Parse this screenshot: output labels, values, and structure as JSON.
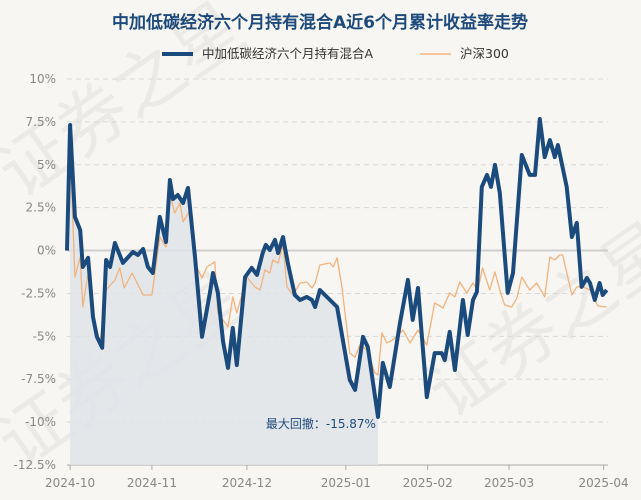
{
  "chart_data": {
    "type": "line",
    "title": "中加低碳经济六个月持有混合A近6个月累计收益率走势",
    "xlabel": "",
    "ylabel": "",
    "x_unit": "trading-day index",
    "xlim": [
      0,
      123
    ],
    "ylim": [
      -12.5,
      10
    ],
    "grid": true,
    "legend_position": "top-center",
    "y_ticks": [
      {
        "value": 10,
        "label": "10%"
      },
      {
        "value": 7.5,
        "label": "7.5%"
      },
      {
        "value": 5,
        "label": "5%"
      },
      {
        "value": 2.5,
        "label": "2.5%"
      },
      {
        "value": 0,
        "label": "0%"
      },
      {
        "value": -2.5,
        "label": "-2.5%"
      },
      {
        "value": -5,
        "label": "-5%"
      },
      {
        "value": -7.5,
        "label": "-7.5%"
      },
      {
        "value": -10,
        "label": "-10%"
      },
      {
        "value": -12.5,
        "label": "-12.5%"
      }
    ],
    "x_ticks": [
      {
        "value": 0.7,
        "label": "2024-10"
      },
      {
        "value": 19.3,
        "label": "2024-11"
      },
      {
        "value": 40.9,
        "label": "2024-12"
      },
      {
        "value": 63.4,
        "label": "2025-01"
      },
      {
        "value": 82,
        "label": "2025-02"
      },
      {
        "value": 100.5,
        "label": "2025-03"
      },
      {
        "value": 122,
        "label": "2025-04"
      }
    ],
    "series": [
      {
        "name": "中加低碳经济六个月持有混合A",
        "color": "#1b4b7d",
        "x": [
          0,
          0.7,
          1.8,
          3,
          3.6,
          4.8,
          5.9,
          6.8,
          8,
          8.9,
          9.8,
          10.9,
          12.7,
          15,
          16.1,
          17.3,
          18.4,
          19.5,
          21.1,
          22.5,
          23.4,
          24.1,
          25.2,
          26.4,
          27.5,
          29.1,
          30.7,
          32.5,
          33.2,
          34.3,
          35.5,
          36.6,
          37.7,
          38.6,
          40.5,
          42,
          43.2,
          44.5,
          45.2,
          46.1,
          47.3,
          48,
          49.1,
          50.2,
          51.8,
          53,
          54.5,
          55.7,
          56.4,
          57.5,
          61.4,
          64.3,
          65.5,
          67.3,
          68.4,
          70.7,
          71.8,
          73.4,
          75.7,
          77.5,
          78.6,
          79.8,
          81.8,
          83.6,
          85.2,
          85.9,
          87,
          88.2,
          90,
          91.1,
          92.3,
          93.2,
          94.3,
          95.5,
          96.4,
          97.3,
          98.4,
          100.2,
          101.4,
          103.4,
          105.2,
          106.4,
          107.5,
          108.6,
          109.8,
          110.9,
          111.6,
          113.6,
          114.8,
          115.9,
          117,
          118.2,
          118.9,
          120,
          121.1,
          121.8,
          122.7
        ],
        "values": [
          0,
          7.32,
          1.96,
          1.2,
          -0.96,
          -0.43,
          -3.87,
          -5.03,
          -5.67,
          -0.55,
          -0.96,
          0.44,
          -0.72,
          -0.08,
          -0.26,
          0.09,
          -0.96,
          -1.31,
          1.96,
          0.5,
          4.11,
          3.0,
          3.24,
          2.77,
          3.65,
          -0.37,
          -5.03,
          -2.47,
          -1.31,
          -2.47,
          -5.32,
          -6.84,
          -4.51,
          -6.67,
          -1.54,
          -1.01,
          -1.42,
          -0.14,
          0.33,
          0.03,
          0.62,
          -0.14,
          0.79,
          -0.72,
          -2.59,
          -2.88,
          -2.7,
          -2.88,
          -3.29,
          -2.3,
          -3.29,
          -7.54,
          -8.12,
          -5.03,
          -5.62,
          -9.7,
          -6.55,
          -7.95,
          -4.21,
          -1.71,
          -4.04,
          -2.18,
          -8.54,
          -5.98,
          -5.98,
          -6.38,
          -4.74,
          -6.96,
          -2.88,
          -4.92,
          -2.88,
          -2.41,
          3.71,
          4.41,
          3.71,
          4.99,
          3.36,
          -2.47,
          -1.31,
          5.57,
          4.41,
          4.41,
          7.67,
          5.45,
          6.44,
          5.45,
          6.15,
          3.71,
          0.79,
          1.61,
          -2.12,
          -1.6,
          -1.89,
          -2.88,
          -1.89,
          -2.59,
          -2.3
        ]
      },
      {
        "name": "沪深300",
        "color": "#f2b27c",
        "x": [
          0,
          0.7,
          1.8,
          3,
          3.6,
          4.8,
          5.9,
          7.5,
          8.9,
          10.9,
          12,
          13,
          14.8,
          17.3,
          19.3,
          21.1,
          22.5,
          23.4,
          24.5,
          25.7,
          26.4,
          28,
          29.5,
          30.7,
          31.8,
          33.6,
          34.3,
          36.6,
          37.7,
          38.6,
          40.9,
          42.7,
          43.9,
          45,
          46.1,
          46.8,
          48,
          49.1,
          50,
          51.4,
          53,
          54.5,
          55.7,
          56.4,
          57.5,
          59.8,
          60.5,
          61.4,
          62.5,
          64.3,
          65.5,
          66.6,
          68.2,
          70,
          70.7,
          71.6,
          72.7,
          74.1,
          76.4,
          78,
          79.8,
          81.8,
          83.6,
          85.5,
          87,
          88.2,
          89.3,
          90.9,
          92.3,
          93.4,
          94.5,
          96.1,
          97.3,
          98.4,
          99.5,
          101.1,
          102.3,
          103.4,
          105.2,
          106.8,
          108.6,
          109.8,
          110.9,
          112,
          112.7,
          114.8,
          115.9,
          117.3,
          118.9,
          120.7,
          122.7
        ],
        "values": [
          0,
          6.04,
          -1.54,
          -0.37,
          -3.29,
          -1.31,
          -3.64,
          -5.38,
          -2.3,
          -1.71,
          -1.01,
          -2.18,
          -1.31,
          -2.59,
          -2.59,
          0.79,
          0.21,
          3.24,
          2.19,
          2.77,
          1.67,
          2.37,
          -0.96,
          -1.6,
          -0.96,
          -0.66,
          -3.64,
          -4.45,
          -2.7,
          -3.64,
          -1.54,
          -2.12,
          -2.3,
          -1.13,
          -1.31,
          -0.55,
          -0.72,
          0.33,
          -2.12,
          -2.59,
          -1.89,
          -1.83,
          -2.18,
          -1.89,
          -0.84,
          -0.72,
          -0.96,
          -0.43,
          -2.12,
          -5.98,
          -6.21,
          -5.5,
          -5.79,
          -7.13,
          -7.25,
          -4.8,
          -5.38,
          -5.21,
          -4.63,
          -5.38,
          -4.63,
          -5.5,
          -3.05,
          -3.34,
          -2.47,
          -2.7,
          -1.83,
          -2.47,
          -1.89,
          -2.3,
          -1.01,
          -2.3,
          -1.25,
          -2.3,
          -3.17,
          -3.29,
          -2.76,
          -1.54,
          -2.3,
          -1.89,
          -2.7,
          -0.37,
          -0.55,
          -0.26,
          -0.26,
          -2.59,
          -2.12,
          -2.12,
          -2.3,
          -3.23,
          -3.29
        ]
      }
    ],
    "max_drawdown": {
      "label": "最大回撤：-15.87%",
      "value": -15.87,
      "start_x": 0.7,
      "end_x": 70.7,
      "fill_color": "#dfe4e9"
    }
  }
}
